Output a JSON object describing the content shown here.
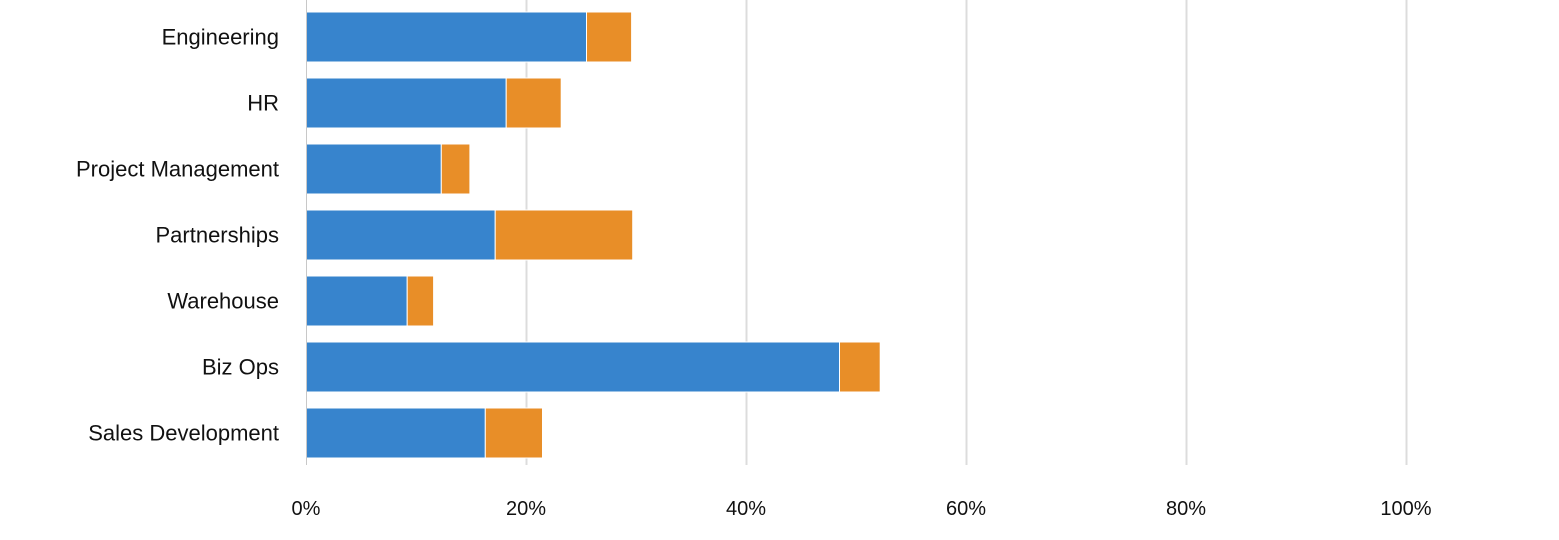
{
  "chart_data": {
    "type": "bar",
    "orientation": "horizontal",
    "stacked": true,
    "categories": [
      "Engineering",
      "HR",
      "Project Management",
      "Partnerships",
      "Warehouse",
      "Biz Ops",
      "Sales Development"
    ],
    "series": [
      {
        "values": [
          25.5,
          18.2,
          12.3,
          17.2,
          9.2,
          48.5,
          16.3
        ],
        "color": "#3784cd"
      },
      {
        "values": [
          4.1,
          5.0,
          2.6,
          12.5,
          2.4,
          3.7,
          5.2
        ],
        "color": "#e88e28"
      }
    ],
    "xlim": [
      0,
      100
    ],
    "x_ticks": [
      0,
      20,
      40,
      60,
      80,
      100
    ],
    "x_tick_labels": [
      "0%",
      "20%",
      "40%",
      "60%",
      "80%",
      "100%"
    ],
    "grid": true,
    "grid_axis": "x",
    "legend": false,
    "title": "",
    "xlabel": "",
    "ylabel": ""
  }
}
